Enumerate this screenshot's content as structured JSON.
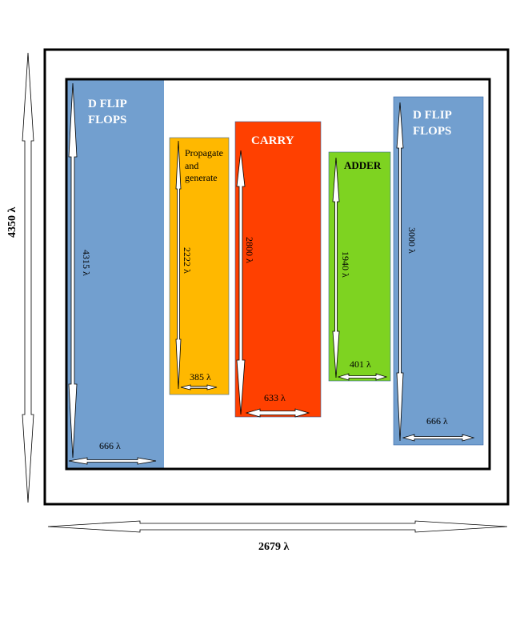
{
  "labels": {
    "total_height": "4350 λ",
    "total_width": "2679 λ"
  },
  "blocks": {
    "dff_left": {
      "title_line1": "D FLIP",
      "title_line2": "FLOPS",
      "height_label": "4315 λ",
      "width_label": "666 λ",
      "color": "#729FCF"
    },
    "propagate": {
      "title_line1": "Propagate",
      "title_line2": "and",
      "title_line3": "generate",
      "height_label": "2222 λ",
      "width_label": "385 λ",
      "color": "#FFB800"
    },
    "carry": {
      "title": "CARRY",
      "height_label": "2800 λ",
      "width_label": "633 λ",
      "color": "#FF4000"
    },
    "adder": {
      "title": "ADDER",
      "height_label": "1940 λ",
      "width_label": "401 λ",
      "color": "#7ED321"
    },
    "dff_right": {
      "title_line1": "D FLIP",
      "title_line2": "FLOPS",
      "height_label": "3000 λ",
      "width_label": "666 λ",
      "color": "#729FCF"
    }
  },
  "colors": {
    "border": "#000000",
    "arrow_fill": "#ffffff",
    "title_light": "#ffffff",
    "title_dark": "#000000"
  }
}
